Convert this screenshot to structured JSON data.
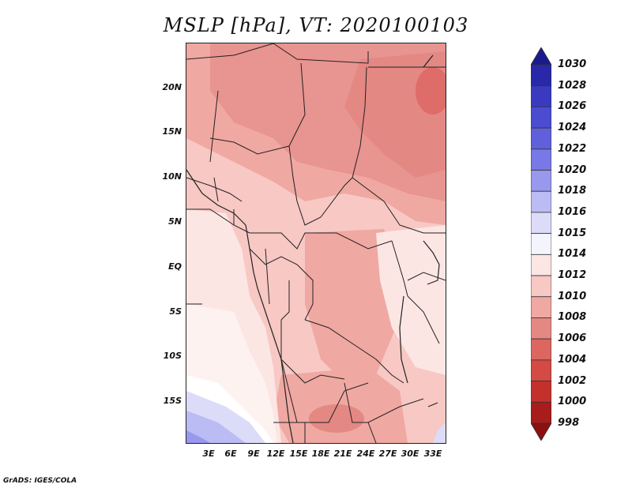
{
  "title": "MSLP [hPa], VT: 2020100103",
  "credit": "GrADS: IGES/COLA",
  "lat_labels": [
    "20N",
    "15N",
    "10N",
    "5N",
    "EQ",
    "5S",
    "10S",
    "15S"
  ],
  "lon_labels": [
    "3E",
    "6E",
    "9E",
    "12E",
    "15E",
    "18E",
    "21E",
    "24E",
    "27E",
    "30E",
    "33E"
  ],
  "colorbar": {
    "labels": [
      "1030",
      "1028",
      "1026",
      "1024",
      "1022",
      "1020",
      "1018",
      "1016",
      "1015",
      "1014",
      "1012",
      "1010",
      "1008",
      "1006",
      "1004",
      "1002",
      "1000",
      "998"
    ],
    "colors": [
      "#1a1a8c",
      "#2828a8",
      "#3a3ac0",
      "#4c4cd0",
      "#6060dc",
      "#7878e6",
      "#9898ee",
      "#bcbcf4",
      "#dcdcf8",
      "#f4f4fc",
      "#fce6e4",
      "#f8c8c4",
      "#f0a8a2",
      "#e48884",
      "#dc6660",
      "#d44a44",
      "#c4302c",
      "#a81c1c",
      "#8c1010"
    ]
  },
  "chart_data": {
    "type": "heatmap",
    "title": "MSLP [hPa], VT: 2020100103",
    "variable": "Mean sea level pressure",
    "units": "hPa",
    "valid_time": "2020100103",
    "lon_range": [
      0,
      35
    ],
    "lat_range": [
      -20,
      24
    ],
    "contour_levels": [
      998,
      1000,
      1002,
      1004,
      1006,
      1008,
      1010,
      1012,
      1014,
      1015,
      1016,
      1018,
      1020,
      1022,
      1024,
      1026,
      1028,
      1030
    ]
  }
}
